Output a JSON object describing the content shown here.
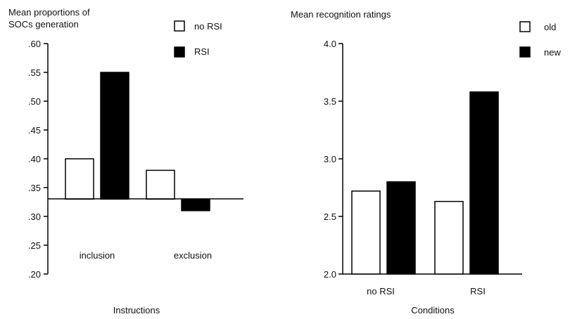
{
  "chart_data": [
    {
      "type": "bar",
      "ylabel": "Mean proportions of SOCs generation",
      "ylabel_lines": [
        "Mean proportions of",
        "SOCs generation"
      ],
      "xlabel": "Instructions",
      "categories": [
        "inclusion",
        "exclusion"
      ],
      "series": [
        {
          "name": "no RSI",
          "values": [
            0.4,
            0.38
          ],
          "color": "#ffffff"
        },
        {
          "name": "RSI",
          "values": [
            0.55,
            0.31
          ],
          "color": "#000000"
        }
      ],
      "baseline": 0.33,
      "ylim": [
        0.2,
        0.6
      ],
      "yticks": [
        0.2,
        0.25,
        0.3,
        0.35,
        0.4,
        0.45,
        0.5,
        0.55,
        0.6
      ],
      "ytick_labels": [
        ".20",
        ".25",
        ".30",
        ".35",
        ".40",
        ".45",
        ".50",
        ".55",
        ".60"
      ],
      "category_label_placement": "inside-plot",
      "legend_position": "top-right",
      "grid": false
    },
    {
      "type": "bar",
      "ylabel": "Mean recognition ratings",
      "xlabel": "Conditions",
      "categories": [
        "no RSI",
        "RSI"
      ],
      "series": [
        {
          "name": "old",
          "values": [
            2.72,
            2.63
          ],
          "color": "#ffffff"
        },
        {
          "name": "new",
          "values": [
            2.8,
            3.58
          ],
          "color": "#000000"
        }
      ],
      "baseline": 2.0,
      "ylim": [
        2.0,
        4.0
      ],
      "yticks": [
        2.0,
        2.5,
        3.0,
        3.5,
        4.0
      ],
      "ytick_labels": [
        "2.0",
        "2.5",
        "3.0",
        "3.5",
        "4.0"
      ],
      "category_label_placement": "below-axis",
      "legend_position": "top-right",
      "grid": false
    }
  ]
}
